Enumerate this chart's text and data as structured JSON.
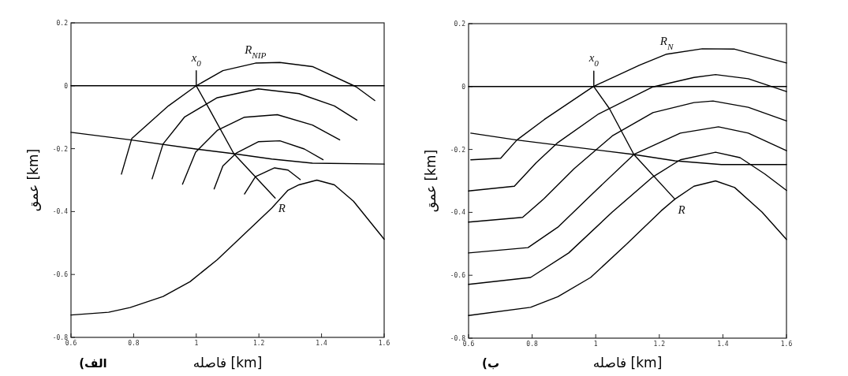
{
  "chart_data": [
    {
      "type": "line",
      "xlabel": "فاصله [km]",
      "ylabel": "عمق [km]",
      "xlim": [
        0.6,
        1.6
      ],
      "ylim": [
        -0.8,
        0.2
      ],
      "xticks": [
        0.6,
        0.8,
        1,
        1.2,
        1.4,
        1.6
      ],
      "yticks": [
        0.2,
        0,
        -0.2,
        -0.4,
        -0.6,
        -0.8
      ],
      "line_style": "solid",
      "series": [
        {
          "color": "#000000",
          "x": [
            0.6,
            1.6
          ],
          "values": [
            0,
            0
          ]
        },
        {
          "color": "#000000",
          "x": [
            0.6,
            0.789,
            0.998,
            1.12,
            1.241,
            1.371,
            1.6
          ],
          "values": [
            -0.148,
            -0.172,
            -0.201,
            -0.216,
            -0.233,
            -0.246,
            -0.249
          ]
        },
        {
          "color": "#000000",
          "x": [
            0.6,
            0.72,
            0.789,
            0.894,
            0.98,
            1.067,
            1.154,
            1.241,
            1.293,
            1.328,
            1.385,
            1.441,
            1.502,
            1.6
          ],
          "values": [
            -0.729,
            -0.72,
            -0.705,
            -0.67,
            -0.623,
            -0.553,
            -0.471,
            -0.389,
            -0.332,
            -0.315,
            -0.3,
            -0.315,
            -0.367,
            -0.488
          ]
        },
        {
          "color": "#000000",
          "x": [
            1.0,
            1.0,
            1.041,
            1.12,
            1.252
          ],
          "values": [
            0.048,
            0,
            -0.073,
            -0.216,
            -0.357
          ]
        },
        {
          "color": "#000000",
          "x": [
            0.761,
            0.794,
            0.842,
            0.911,
            1.0,
            1.085,
            1.189,
            1.267,
            1.371,
            1.51,
            1.57
          ],
          "values": [
            -0.281,
            -0.168,
            -0.125,
            -0.064,
            0,
            0.048,
            0.072,
            0.074,
            0.061,
            -0.003,
            -0.047
          ]
        },
        {
          "color": "#000000",
          "x": [
            0.859,
            0.894,
            0.963,
            1.067,
            1.198,
            1.328,
            1.441,
            1.513
          ],
          "values": [
            -0.296,
            -0.185,
            -0.099,
            -0.038,
            -0.01,
            -0.025,
            -0.064,
            -0.109
          ]
        },
        {
          "color": "#000000",
          "x": [
            0.956,
            0.998,
            1.067,
            1.154,
            1.259,
            1.371,
            1.458
          ],
          "values": [
            -0.313,
            -0.211,
            -0.142,
            -0.1,
            -0.092,
            -0.125,
            -0.172
          ]
        },
        {
          "color": "#000000",
          "x": [
            1.057,
            1.085,
            1.128,
            1.198,
            1.267,
            1.345,
            1.405
          ],
          "values": [
            -0.328,
            -0.255,
            -0.214,
            -0.178,
            -0.175,
            -0.201,
            -0.235
          ]
        },
        {
          "color": "#000000",
          "x": [
            1.154,
            1.189,
            1.25,
            1.293,
            1.332
          ],
          "values": [
            -0.344,
            -0.289,
            -0.261,
            -0.268,
            -0.298
          ]
        }
      ],
      "annotations": [
        {
          "text": "x$_{0}$",
          "x": 1.0,
          "y": 0.048
        },
        {
          "text": "R$_{NIP}$",
          "x": 1.189,
          "y": 0.072
        },
        {
          "text": "R",
          "x": 1.252,
          "y": -0.357
        },
        "الف)"
      ]
    },
    {
      "type": "line",
      "xlabel": "فاصله [km]",
      "ylabel": "عمق [km]",
      "xlim": [
        0.6,
        1.6
      ],
      "ylim": [
        -0.8,
        0.2
      ],
      "xticks": [
        0.6,
        0.8,
        1,
        1.2,
        1.4,
        1.6
      ],
      "yticks": [
        0.2,
        0,
        -0.2,
        -0.4,
        -0.6,
        -0.8
      ],
      "line_style": "solid",
      "series": [
        {
          "color": "#000000",
          "x": [
            0.6,
            1.6
          ],
          "values": [
            0,
            0
          ]
        },
        {
          "color": "#000000",
          "x": [
            0.607,
            0.752,
            0.992,
            1.12,
            1.249,
            1.395,
            1.6
          ],
          "values": [
            -0.148,
            -0.17,
            -0.2,
            -0.216,
            -0.236,
            -0.248,
            -0.248
          ]
        },
        {
          "color": "#000000",
          "x": [
            0.6,
            0.795,
            0.881,
            0.984,
            1.095,
            1.206,
            1.249,
            1.309,
            1.377,
            1.437,
            1.523,
            1.6
          ],
          "values": [
            -0.728,
            -0.702,
            -0.668,
            -0.607,
            -0.503,
            -0.395,
            -0.358,
            -0.317,
            -0.3,
            -0.321,
            -0.399,
            -0.486
          ]
        },
        {
          "color": "#000000",
          "x": [
            0.607,
            0.701,
            0.752,
            0.838,
            0.992,
            1.138,
            1.223,
            1.335,
            1.437,
            1.6
          ],
          "values": [
            -0.233,
            -0.228,
            -0.17,
            -0.105,
            0,
            0.068,
            0.103,
            0.12,
            0.119,
            0.075
          ]
        },
        {
          "color": "#000000",
          "x": [
            0.6,
            0.744,
            0.812,
            0.881,
            1.009,
            1.18,
            1.309,
            1.377,
            1.48,
            1.6
          ],
          "values": [
            -0.332,
            -0.317,
            -0.243,
            -0.178,
            -0.087,
            -0.001,
            0.029,
            0.038,
            0.025,
            -0.016
          ]
        },
        {
          "color": "#000000",
          "x": [
            0.6,
            0.77,
            0.838,
            0.932,
            1.052,
            1.18,
            1.309,
            1.369,
            1.48,
            1.6
          ],
          "values": [
            -0.431,
            -0.416,
            -0.356,
            -0.261,
            -0.157,
            -0.083,
            -0.051,
            -0.046,
            -0.066,
            -0.109
          ]
        },
        {
          "color": "#000000",
          "x": [
            0.6,
            0.787,
            0.881,
            1.001,
            1.12,
            1.266,
            1.386,
            1.48,
            1.6
          ],
          "values": [
            -0.529,
            -0.512,
            -0.447,
            -0.33,
            -0.216,
            -0.148,
            -0.128,
            -0.148,
            -0.204
          ]
        },
        {
          "color": "#000000",
          "x": [
            0.6,
            0.795,
            0.915,
            1.052,
            1.18,
            1.266,
            1.377,
            1.454,
            1.532,
            1.6
          ],
          "values": [
            -0.629,
            -0.607,
            -0.529,
            -0.399,
            -0.287,
            -0.233,
            -0.209,
            -0.226,
            -0.278,
            -0.33
          ]
        },
        {
          "color": "#000000",
          "x": [
            0.994,
            0.994,
            1.043,
            1.12,
            1.249
          ],
          "values": [
            0.049,
            0,
            -0.07,
            -0.216,
            -0.358
          ]
        }
      ],
      "annotations": [
        {
          "text": "x$_{0}$",
          "x": 0.994,
          "y": 0.049
        },
        {
          "text": "R$_{N}$",
          "x": 1.223,
          "y": 0.103
        },
        {
          "text": "R",
          "x": 1.249,
          "y": -0.358
        },
        "ب)"
      ]
    }
  ]
}
